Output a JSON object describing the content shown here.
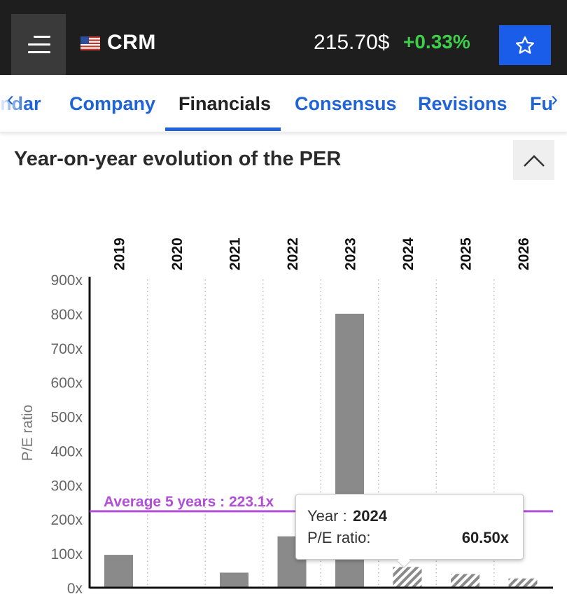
{
  "header": {
    "ticker": "CRM",
    "price": "215.70$",
    "change": "+0.33%",
    "change_color": "#3ecf4a",
    "menu_icon": "hamburger-icon",
    "favorite_icon": "star-outline-icon",
    "flag_icon": "us-flag-icon"
  },
  "tabs": {
    "items": [
      {
        "label": "ndar",
        "active": false
      },
      {
        "label": "Company",
        "active": false
      },
      {
        "label": "Financials",
        "active": true
      },
      {
        "label": "Consensus",
        "active": false
      },
      {
        "label": "Revisions",
        "active": false
      },
      {
        "label": "Fu",
        "active": false
      }
    ],
    "left_arrow": "‹",
    "right_arrow": "›"
  },
  "section": {
    "title": "Year-on-year evolution of the PER",
    "collapse_icon": "chevron-up-icon"
  },
  "chart_data": {
    "type": "bar",
    "categories": [
      "2019",
      "2020",
      "2021",
      "2022",
      "2023",
      "2024",
      "2025",
      "2026"
    ],
    "values": [
      96,
      null,
      44,
      150,
      800,
      60.5,
      40,
      27
    ],
    "estimated": [
      false,
      false,
      false,
      false,
      false,
      true,
      true,
      true
    ],
    "ylabel": "P/E ratio",
    "ylim": [
      0,
      900
    ],
    "yticks": [
      "0x",
      "100x",
      "200x",
      "300x",
      "400x",
      "500x",
      "600x",
      "700x",
      "800x",
      "900x"
    ],
    "average": {
      "value": 223.1,
      "label": "Average 5 years : 223.1x",
      "color": "#b14fd6"
    },
    "bar_color": "#8a8a8a",
    "grid": "vertical dotted"
  },
  "tooltip": {
    "year_label": "Year : ",
    "year_value": "2024",
    "per_label": "P/E ratio:",
    "per_value": "60.50x"
  }
}
